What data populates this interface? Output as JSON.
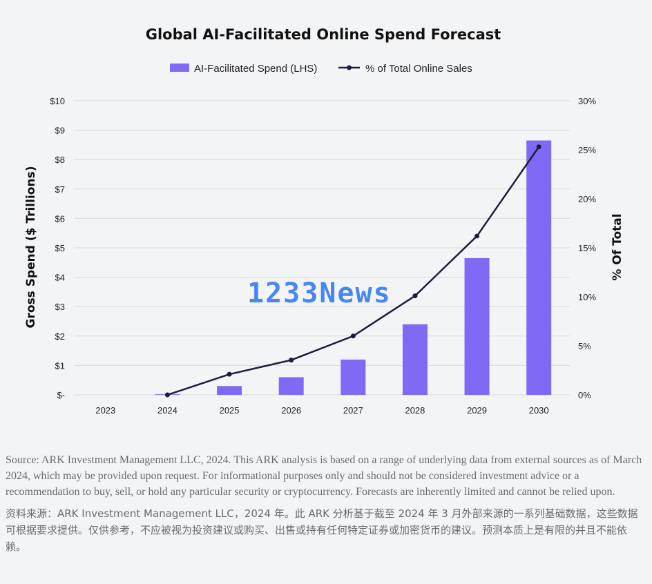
{
  "chart_data": {
    "type": "bar",
    "title": "Global AI-Facilitated Online Spend Forecast",
    "categories": [
      "2023",
      "2024",
      "2025",
      "2026",
      "2027",
      "2028",
      "2029",
      "2030"
    ],
    "series": [
      {
        "name": "AI-Facilitated Spend (LHS)",
        "type": "bar",
        "axis": "left",
        "color": "#8069f5",
        "values": [
          0,
          0.02,
          0.3,
          0.6,
          1.2,
          2.4,
          4.65,
          8.65
        ]
      },
      {
        "name": "% of Total Online Sales",
        "type": "line",
        "axis": "right",
        "color": "#1c1d3a",
        "values": [
          null,
          0,
          2.1,
          3.55,
          6.0,
          10.1,
          16.2,
          25.3
        ]
      }
    ],
    "ylabel": "Gross Spend ($ Trillions)",
    "y2label": "% Of Total",
    "ylim": [
      0,
      10
    ],
    "y2lim": [
      0,
      30
    ],
    "yticks": [
      "$-",
      "$1",
      "$2",
      "$3",
      "$4",
      "$5",
      "$6",
      "$7",
      "$8",
      "$9",
      "$10"
    ],
    "y2ticks": [
      "0%",
      "5%",
      "10%",
      "15%",
      "20%",
      "25%",
      "30%"
    ],
    "legend_position": "top-center",
    "grid": "horizontal"
  },
  "watermark": "1233News",
  "source_en": "Source: ARK Investment Management LLC, 2024. This ARK analysis is based on a range of underlying data from external sources as of March 2024, which may be provided upon request. For informational purposes only and should not be considered investment advice or a recommendation to buy, sell, or hold any particular security or cryptocurrency. Forecasts are inherently limited and cannot be relied upon.",
  "source_cn": "资料来源：ARK Investment Management LLC，2024 年。此 ARK 分析基于截至 2024 年 3 月外部来源的一系列基础数据，这些数据可根据要求提供。仅供参考，不应被视为投资建议或购买、出售或持有任何特定证券或加密货币的建议。预测本质上是有限的并且不能依赖。"
}
